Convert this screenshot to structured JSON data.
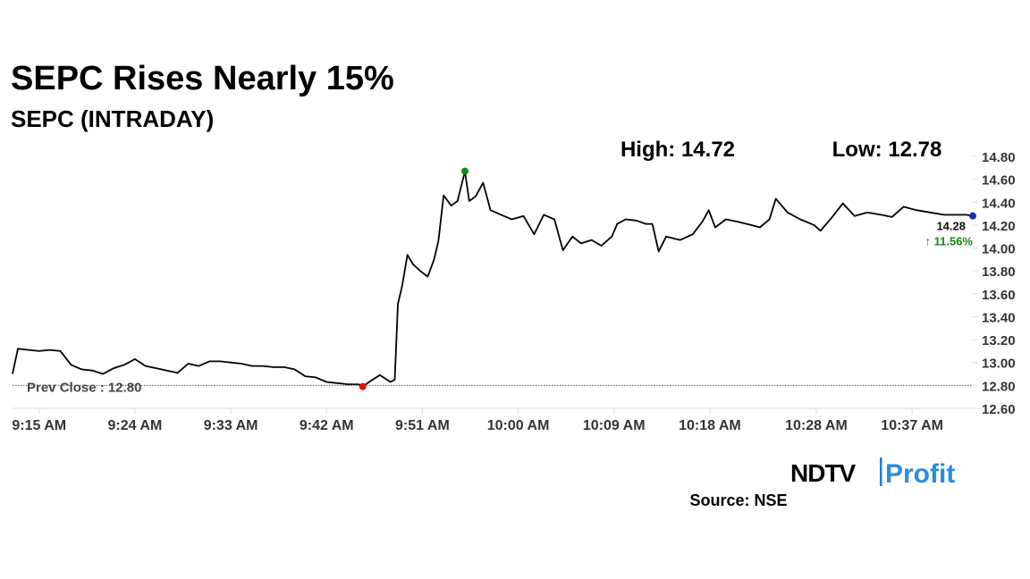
{
  "chart_data": {
    "type": "line",
    "title": "SEPC Rises Nearly 15%",
    "subtitle": "SEPC (INTRADAY)",
    "high_label": "High: 14.72",
    "low_label": "Low: 12.78",
    "last_value_label": "14.28",
    "change_label": "↑ 11.56%",
    "prev_close": {
      "value": 12.8,
      "label": "Prev Close : 12.80"
    },
    "source": "Source: NSE",
    "logo": {
      "brand": "NDTV",
      "sub": "Profit"
    },
    "x": [
      -2.5,
      -2,
      -1,
      0,
      1,
      2,
      3,
      4,
      5,
      6,
      7,
      8,
      9,
      10,
      11,
      12,
      13,
      14,
      15,
      16,
      17,
      18,
      19,
      20,
      21,
      22,
      23,
      24,
      25,
      26,
      27,
      28,
      29,
      30,
      30.4,
      31,
      32,
      33,
      33.4,
      33.7,
      34.1,
      34.6,
      35.1,
      35.8,
      36.5,
      37.1,
      37.5,
      38.0,
      38.7,
      39.3,
      40.0,
      40.4,
      41.0,
      41.7,
      42.4,
      43.4,
      44.4,
      45.5,
      46.5,
      47.4,
      48.4,
      49.2,
      50.1,
      50.9,
      51.9,
      52.8,
      53.8,
      54.3,
      55.1,
      56.1,
      57.0,
      57.6,
      58.2,
      58.9,
      60.2,
      61.4,
      62.3,
      62.9,
      63.5,
      64.5,
      65.6,
      66.9,
      67.7,
      68.6,
      69.2,
      70.3,
      71.5,
      72.8,
      73.4,
      74.5,
      75.5,
      76.6,
      77.8,
      79.1,
      80.1,
      81.2,
      82.4,
      83.7,
      85.0,
      86.2,
      87.1,
      87.7
    ],
    "series": [
      {
        "name": "SEPC",
        "color": "#000000",
        "values": [
          12.9,
          13.12,
          13.11,
          13.1,
          13.11,
          13.1,
          12.98,
          12.94,
          12.93,
          12.9,
          12.95,
          12.98,
          13.03,
          12.97,
          12.95,
          12.93,
          12.91,
          12.99,
          12.97,
          13.01,
          13.01,
          13.0,
          12.99,
          12.97,
          12.97,
          12.96,
          12.96,
          12.94,
          12.88,
          12.87,
          12.83,
          12.82,
          12.81,
          12.81,
          12.79,
          12.83,
          12.89,
          12.83,
          12.85,
          13.51,
          13.67,
          13.94,
          13.86,
          13.8,
          13.75,
          13.9,
          14.06,
          14.46,
          14.37,
          14.41,
          14.67,
          14.41,
          14.45,
          14.57,
          14.33,
          14.29,
          14.25,
          14.28,
          14.12,
          14.29,
          14.25,
          13.98,
          14.1,
          14.04,
          14.07,
          14.02,
          14.1,
          14.21,
          14.25,
          14.24,
          14.21,
          14.21,
          13.97,
          14.1,
          14.07,
          14.12,
          14.23,
          14.33,
          14.18,
          14.25,
          14.23,
          14.2,
          14.18,
          14.25,
          14.43,
          14.31,
          14.25,
          14.2,
          14.15,
          14.27,
          14.39,
          14.28,
          14.31,
          14.29,
          14.27,
          14.36,
          14.33,
          14.31,
          14.29,
          14.29,
          14.29,
          14.28
        ]
      }
    ],
    "high_color": "#128a12",
    "low_color": "#e01010",
    "last_color": "#1a2fb0",
    "prev_close_color": "#c0392b",
    "change_color": "#128a12",
    "xlim": [
      -2.5,
      87.7
    ],
    "xticks": [
      {
        "value": 0,
        "label": "9:15 AM"
      },
      {
        "value": 9,
        "label": "9:24 AM"
      },
      {
        "value": 18,
        "label": "9:33 AM"
      },
      {
        "value": 27,
        "label": "9:42 AM"
      },
      {
        "value": 36,
        "label": "9:51 AM"
      },
      {
        "value": 45,
        "label": "10:00 AM"
      },
      {
        "value": 54,
        "label": "10:09 AM"
      },
      {
        "value": 63,
        "label": "10:18 AM"
      },
      {
        "value": 73,
        "label": "10:28 AM"
      },
      {
        "value": 82,
        "label": "10:37 AM"
      }
    ],
    "ylim": [
      12.6,
      14.8
    ],
    "yticks": [
      {
        "value": 12.6,
        "label": "12.60"
      },
      {
        "value": 12.8,
        "label": "12.80"
      },
      {
        "value": 13.0,
        "label": "13.00"
      },
      {
        "value": 13.2,
        "label": "13.20"
      },
      {
        "value": 13.4,
        "label": "13.40"
      },
      {
        "value": 13.6,
        "label": "13.60"
      },
      {
        "value": 13.8,
        "label": "13.80"
      },
      {
        "value": 14.0,
        "label": "14.00"
      },
      {
        "value": 14.2,
        "label": "14.20"
      },
      {
        "value": 14.4,
        "label": "14.40"
      },
      {
        "value": 14.6,
        "label": "14.60"
      },
      {
        "value": 14.8,
        "label": "14.80"
      }
    ],
    "grid": false
  }
}
